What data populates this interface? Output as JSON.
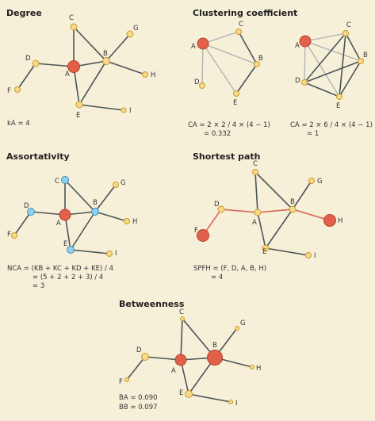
{
  "panels": {
    "degree": {
      "title": "Degree",
      "formula": [
        "kA = 4"
      ],
      "labels": {
        "A": "A",
        "B": "B",
        "C": "C",
        "D": "D",
        "E": "E",
        "F": "F",
        "G": "G",
        "H": "H",
        "I": "I"
      }
    },
    "clustering": {
      "title": "Clustering coefficient",
      "formula_left": [
        "CA = 2 × 2 / 4 × (4 − 1)",
        "= 0.332"
      ],
      "formula_right": [
        "CA = 2 × 6 / 4 × (4 − 1)",
        "= 1"
      ]
    },
    "assortativity": {
      "title": "Assortativity",
      "formula": [
        "NCA = (KB + KC + KD + KE) / 4",
        "= (5 + 2 + 2 + 3) / 4",
        "= 3"
      ]
    },
    "shortest_path": {
      "title": "Shortest path",
      "formula": [
        "SPFH = (F, D, A, B, H)",
        "= 4"
      ]
    },
    "betweenness": {
      "title": "Betweenness",
      "formula": [
        "BA = 0.090",
        "BB = 0.097"
      ]
    }
  },
  "node_labels": [
    "A",
    "B",
    "C",
    "D",
    "E",
    "F",
    "G",
    "H",
    "I"
  ],
  "colors": {
    "background": "#f7f0d8",
    "node_default": "#f7d98a",
    "node_focus": "#e0604a",
    "node_neighbor": "#8fd0f0",
    "edge": "#4a5458",
    "edge_light": "#a9b3b5",
    "edge_path": "#d9715e"
  }
}
